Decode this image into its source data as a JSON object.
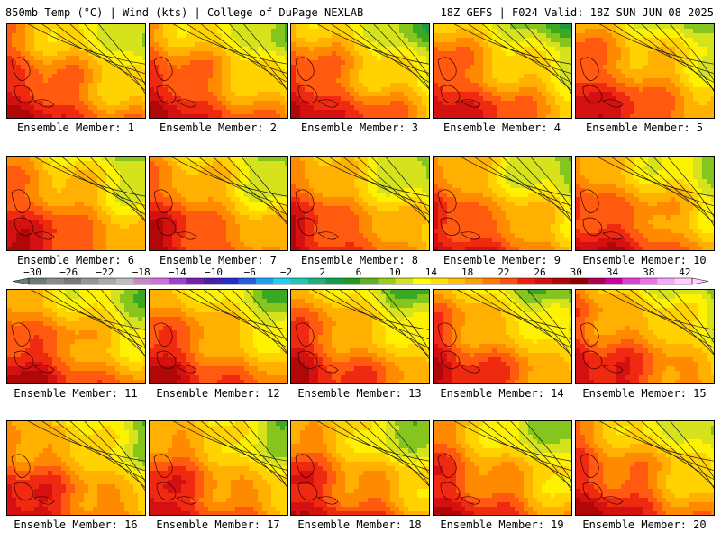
{
  "header": {
    "left": "850mb Temp (°C) | Wind (kts) | College of DuPage NEXLAB",
    "right": "18Z GEFS | F024 Valid: 18Z SUN JUN 08 2025"
  },
  "members": [
    {
      "label": "Ensemble Member: 1"
    },
    {
      "label": "Ensemble Member: 2"
    },
    {
      "label": "Ensemble Member: 3"
    },
    {
      "label": "Ensemble Member: 4"
    },
    {
      "label": "Ensemble Member: 5"
    },
    {
      "label": "Ensemble Member: 6"
    },
    {
      "label": "Ensemble Member: 7"
    },
    {
      "label": "Ensemble Member: 8"
    },
    {
      "label": "Ensemble Member: 9"
    },
    {
      "label": "Ensemble Member: 10"
    },
    {
      "label": "Ensemble Member: 11"
    },
    {
      "label": "Ensemble Member: 12"
    },
    {
      "label": "Ensemble Member: 13"
    },
    {
      "label": "Ensemble Member: 14"
    },
    {
      "label": "Ensemble Member: 15"
    },
    {
      "label": "Ensemble Member: 16"
    },
    {
      "label": "Ensemble Member: 17"
    },
    {
      "label": "Ensemble Member: 18"
    },
    {
      "label": "Ensemble Member: 19"
    },
    {
      "label": "Ensemble Member: 20"
    }
  ],
  "colorbar": {
    "ticks": [
      "−30",
      "−26",
      "−22",
      "−18",
      "−14",
      "−10",
      "−6",
      "−2",
      "2",
      "6",
      "10",
      "14",
      "18",
      "22",
      "26",
      "30",
      "34",
      "38",
      "42"
    ],
    "colors": [
      "#6e7b7b",
      "#8b8b8b",
      "#7a7a7a",
      "#969696",
      "#a9a9a9",
      "#bebebe",
      "#c888c8",
      "#d070e0",
      "#a040d0",
      "#7a1fb0",
      "#4a1fb0",
      "#2a2ad0",
      "#1f5fe0",
      "#1f9ff0",
      "#20d0f0",
      "#20c8b0",
      "#20b080",
      "#10a050",
      "#209a20",
      "#60b020",
      "#9acc18",
      "#d4e020",
      "#ffff00",
      "#ffe000",
      "#ffc000",
      "#ffa000",
      "#ff7a00",
      "#ff5010",
      "#f02010",
      "#d41010",
      "#b00808",
      "#900000",
      "#b00050",
      "#d000a0",
      "#e040d0",
      "#f070f0",
      "#f8a8f8",
      "#ffd0ff"
    ],
    "field_color_levels": [
      {
        "value": 8,
        "color": "#1c9a3c"
      },
      {
        "value": 10,
        "color": "#3aa820"
      },
      {
        "value": 12,
        "color": "#86c41e"
      },
      {
        "value": 14,
        "color": "#d6e21c"
      },
      {
        "value": 16,
        "color": "#fff200"
      },
      {
        "value": 18,
        "color": "#ffd200"
      },
      {
        "value": 20,
        "color": "#ffb000"
      },
      {
        "value": 22,
        "color": "#ff8a00"
      },
      {
        "value": 24,
        "color": "#ff5a10"
      },
      {
        "value": 26,
        "color": "#f02a10"
      },
      {
        "value": 28,
        "color": "#d41010"
      },
      {
        "value": 30,
        "color": "#b00808"
      }
    ]
  },
  "panel_background": "#2fa84a"
}
